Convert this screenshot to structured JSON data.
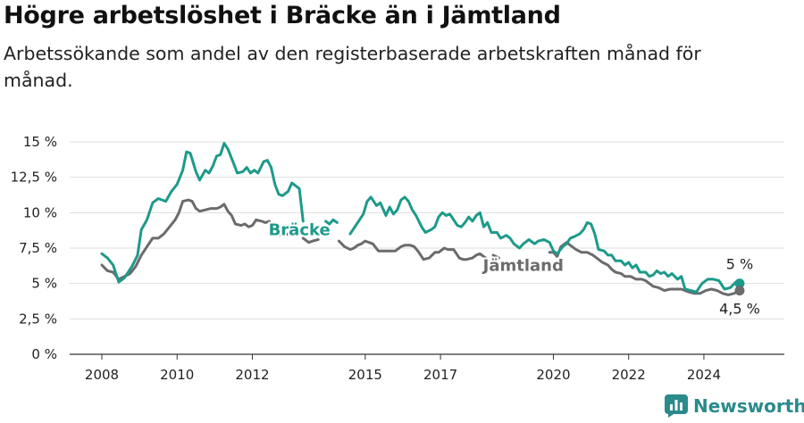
{
  "title": "Högre arbetslöshet i Bräcke än i Jämtland",
  "subtitle": "Arbetssökande som andel av den registerbaserade arbetskraften månad för månad.",
  "brand": {
    "name": "Newsworthy"
  },
  "colors": {
    "bracke": "#1d9a8a",
    "jamtland": "#6b6b6e",
    "grid": "#dedede",
    "brand": "#2a8a8c"
  },
  "chart_data": {
    "type": "line",
    "ylim": [
      0,
      15
    ],
    "xlim": [
      2007.7,
      2025.65
    ],
    "y_ticks": [
      {
        "value": 0,
        "label": "0 %"
      },
      {
        "value": 2.5,
        "label": "2,5 %"
      },
      {
        "value": 5,
        "label": "5 %"
      },
      {
        "value": 7.5,
        "label": "7,5 %"
      },
      {
        "value": 10,
        "label": "10 %"
      },
      {
        "value": 12.5,
        "label": "12,5 %"
      },
      {
        "value": 15,
        "label": "15 %"
      }
    ],
    "x_ticks": [
      {
        "value": 2008,
        "label": "2008"
      },
      {
        "value": 2010,
        "label": "2010"
      },
      {
        "value": 2012,
        "label": "2012"
      },
      {
        "value": 2015,
        "label": "2015"
      },
      {
        "value": 2017,
        "label": "2017"
      },
      {
        "value": 2020,
        "label": "2020"
      },
      {
        "value": 2022,
        "label": "2022"
      },
      {
        "value": 2024,
        "label": "2024"
      }
    ],
    "series": [
      {
        "name": "Bräcke",
        "end_label": "5 %",
        "points": [
          [
            2008.0,
            7.1
          ],
          [
            2008.15,
            6.8
          ],
          [
            2008.3,
            6.3
          ],
          [
            2008.45,
            5.1
          ],
          [
            2008.6,
            5.4
          ],
          [
            2008.8,
            6.2
          ],
          [
            2008.95,
            7.0
          ],
          [
            2009.05,
            8.8
          ],
          [
            2009.2,
            9.5
          ],
          [
            2009.35,
            10.7
          ],
          [
            2009.5,
            11.0
          ],
          [
            2009.7,
            10.8
          ],
          [
            2009.85,
            11.5
          ],
          [
            2010.0,
            12.0
          ],
          [
            2010.15,
            13.0
          ],
          [
            2010.25,
            14.3
          ],
          [
            2010.35,
            14.2
          ],
          [
            2010.5,
            12.9
          ],
          [
            2010.6,
            12.3
          ],
          [
            2010.75,
            13.0
          ],
          [
            2010.85,
            12.8
          ],
          [
            2010.95,
            13.3
          ],
          [
            2011.05,
            14.0
          ],
          [
            2011.15,
            14.1
          ],
          [
            2011.25,
            14.9
          ],
          [
            2011.35,
            14.5
          ],
          [
            2011.5,
            13.5
          ],
          [
            2011.6,
            12.8
          ],
          [
            2011.75,
            12.9
          ],
          [
            2011.85,
            13.2
          ],
          [
            2011.95,
            12.8
          ],
          [
            2012.05,
            13.0
          ],
          [
            2012.15,
            12.8
          ],
          [
            2012.3,
            13.6
          ],
          [
            2012.4,
            13.7
          ],
          [
            2012.5,
            13.2
          ],
          [
            2012.6,
            12.0
          ],
          [
            2012.7,
            11.3
          ],
          [
            2012.8,
            11.2
          ],
          [
            2012.95,
            11.5
          ],
          [
            2013.05,
            12.1
          ],
          [
            2013.15,
            11.9
          ],
          [
            2013.25,
            11.7
          ],
          [
            2013.35,
            9.4
          ],
          null,
          [
            2013.95,
            9.4
          ],
          [
            2014.05,
            9.2
          ],
          [
            2014.15,
            9.5
          ],
          [
            2014.25,
            9.3
          ],
          null,
          [
            2014.6,
            8.5
          ],
          [
            2014.75,
            9.1
          ],
          [
            2014.85,
            9.5
          ],
          [
            2014.95,
            9.9
          ],
          [
            2015.05,
            10.8
          ],
          [
            2015.15,
            11.1
          ],
          [
            2015.3,
            10.5
          ],
          [
            2015.4,
            10.7
          ],
          [
            2015.55,
            9.8
          ],
          [
            2015.65,
            10.4
          ],
          [
            2015.75,
            9.9
          ],
          [
            2015.85,
            10.2
          ],
          [
            2015.95,
            10.9
          ],
          [
            2016.05,
            11.1
          ],
          [
            2016.15,
            10.8
          ],
          [
            2016.25,
            10.2
          ],
          [
            2016.35,
            9.8
          ],
          [
            2016.5,
            9.0
          ],
          [
            2016.6,
            8.6
          ],
          [
            2016.75,
            8.8
          ],
          [
            2016.85,
            9.0
          ],
          [
            2016.95,
            9.7
          ],
          [
            2017.05,
            10.0
          ],
          [
            2017.15,
            9.8
          ],
          [
            2017.25,
            9.9
          ],
          [
            2017.35,
            9.5
          ],
          [
            2017.45,
            9.1
          ],
          [
            2017.55,
            9.0
          ],
          [
            2017.65,
            9.3
          ],
          [
            2017.75,
            9.7
          ],
          [
            2017.85,
            9.4
          ],
          [
            2017.95,
            9.8
          ],
          [
            2018.05,
            10.0
          ],
          [
            2018.15,
            9.0
          ],
          [
            2018.25,
            9.3
          ],
          [
            2018.35,
            8.6
          ],
          [
            2018.5,
            8.6
          ],
          [
            2018.6,
            8.2
          ],
          [
            2018.75,
            8.4
          ],
          [
            2018.85,
            8.2
          ],
          [
            2018.95,
            7.8
          ],
          [
            2019.1,
            7.5
          ],
          [
            2019.2,
            7.8
          ],
          [
            2019.35,
            8.1
          ],
          [
            2019.5,
            7.8
          ],
          [
            2019.6,
            8.0
          ],
          [
            2019.75,
            8.1
          ],
          [
            2019.9,
            7.9
          ],
          [
            2020.0,
            7.3
          ],
          [
            2020.1,
            7.1
          ],
          [
            2020.25,
            7.6
          ],
          [
            2020.35,
            7.8
          ],
          [
            2020.45,
            8.2
          ],
          [
            2020.55,
            8.3
          ],
          [
            2020.7,
            8.5
          ],
          [
            2020.8,
            8.8
          ],
          [
            2020.9,
            9.3
          ],
          [
            2021.0,
            9.2
          ],
          [
            2021.1,
            8.5
          ],
          [
            2021.2,
            7.4
          ],
          [
            2021.35,
            7.3
          ],
          [
            2021.45,
            7.0
          ],
          [
            2021.55,
            7.0
          ],
          [
            2021.65,
            6.6
          ],
          [
            2021.8,
            6.6
          ],
          [
            2021.9,
            6.3
          ],
          [
            2022.0,
            6.5
          ],
          [
            2022.1,
            6.1
          ],
          [
            2022.2,
            6.3
          ],
          [
            2022.3,
            5.8
          ],
          [
            2022.45,
            5.8
          ],
          [
            2022.55,
            5.5
          ],
          [
            2022.65,
            5.6
          ],
          [
            2022.75,
            5.9
          ],
          [
            2022.85,
            5.7
          ],
          [
            2022.95,
            5.8
          ],
          [
            2023.05,
            5.5
          ],
          [
            2023.15,
            5.7
          ],
          [
            2023.3,
            5.3
          ],
          [
            2023.4,
            5.5
          ],
          [
            2023.5,
            4.6
          ],
          [
            2023.65,
            4.5
          ],
          [
            2023.8,
            4.4
          ],
          [
            2023.95,
            5.0
          ],
          [
            2024.1,
            5.3
          ],
          [
            2024.25,
            5.3
          ],
          [
            2024.4,
            5.2
          ],
          [
            2024.55,
            4.6
          ],
          [
            2024.7,
            4.7
          ],
          [
            2024.85,
            5.1
          ],
          [
            2024.95,
            5.0
          ]
        ]
      },
      {
        "name": "Jämtland",
        "end_label": "4,5 %",
        "points": [
          [
            2008.0,
            6.3
          ],
          [
            2008.15,
            5.9
          ],
          [
            2008.3,
            5.8
          ],
          [
            2008.45,
            5.3
          ],
          [
            2008.6,
            5.5
          ],
          [
            2008.75,
            5.7
          ],
          [
            2008.9,
            6.2
          ],
          [
            2009.05,
            7.0
          ],
          [
            2009.2,
            7.6
          ],
          [
            2009.35,
            8.2
          ],
          [
            2009.5,
            8.2
          ],
          [
            2009.65,
            8.5
          ],
          [
            2009.8,
            9.0
          ],
          [
            2009.95,
            9.5
          ],
          [
            2010.05,
            10.0
          ],
          [
            2010.15,
            10.8
          ],
          [
            2010.3,
            10.9
          ],
          [
            2010.4,
            10.8
          ],
          [
            2010.5,
            10.3
          ],
          [
            2010.6,
            10.1
          ],
          [
            2010.75,
            10.2
          ],
          [
            2010.9,
            10.3
          ],
          [
            2011.05,
            10.3
          ],
          [
            2011.15,
            10.4
          ],
          [
            2011.25,
            10.6
          ],
          [
            2011.35,
            10.1
          ],
          [
            2011.45,
            9.8
          ],
          [
            2011.55,
            9.2
          ],
          [
            2011.7,
            9.1
          ],
          [
            2011.8,
            9.2
          ],
          [
            2011.9,
            9.0
          ],
          [
            2012.0,
            9.1
          ],
          [
            2012.1,
            9.5
          ],
          [
            2012.25,
            9.4
          ],
          [
            2012.35,
            9.3
          ],
          [
            2012.45,
            9.4
          ],
          [
            2012.55,
            8.8
          ],
          [
            2012.65,
            8.8
          ],
          [
            2012.75,
            8.4
          ],
          null,
          [
            2012.85,
            8.4
          ],
          [
            2013.05,
            8.6
          ],
          null,
          [
            2013.35,
            8.2
          ],
          [
            2013.5,
            7.9
          ],
          [
            2013.6,
            8.0
          ],
          [
            2013.75,
            8.1
          ],
          null,
          [
            2014.3,
            8.0
          ],
          [
            2014.45,
            7.6
          ],
          [
            2014.6,
            7.4
          ],
          [
            2014.7,
            7.5
          ],
          [
            2014.8,
            7.7
          ],
          [
            2014.9,
            7.8
          ],
          [
            2015.0,
            8.0
          ],
          [
            2015.1,
            7.9
          ],
          [
            2015.2,
            7.8
          ],
          [
            2015.35,
            7.3
          ],
          [
            2015.5,
            7.3
          ],
          [
            2015.65,
            7.3
          ],
          [
            2015.8,
            7.3
          ],
          [
            2015.95,
            7.6
          ],
          [
            2016.05,
            7.7
          ],
          [
            2016.2,
            7.7
          ],
          [
            2016.3,
            7.6
          ],
          [
            2016.4,
            7.3
          ],
          [
            2016.55,
            6.7
          ],
          [
            2016.7,
            6.8
          ],
          [
            2016.85,
            7.2
          ],
          [
            2016.95,
            7.2
          ],
          [
            2017.1,
            7.5
          ],
          [
            2017.2,
            7.4
          ],
          [
            2017.35,
            7.4
          ],
          [
            2017.5,
            6.8
          ],
          [
            2017.6,
            6.7
          ],
          [
            2017.7,
            6.7
          ],
          [
            2017.85,
            6.8
          ],
          [
            2017.95,
            7.0
          ],
          [
            2018.05,
            7.1
          ],
          [
            2018.2,
            6.8
          ],
          null,
          [
            2018.4,
            7.0
          ],
          [
            2018.55,
            6.8
          ],
          null,
          [
            2019.9,
            7.2
          ],
          [
            2020.0,
            7.2
          ],
          [
            2020.1,
            6.9
          ],
          [
            2020.2,
            7.6
          ],
          [
            2020.35,
            7.9
          ],
          [
            2020.5,
            7.6
          ],
          [
            2020.6,
            7.4
          ],
          [
            2020.75,
            7.2
          ],
          [
            2020.9,
            7.2
          ],
          [
            2021.05,
            7.0
          ],
          [
            2021.15,
            6.8
          ],
          [
            2021.3,
            6.5
          ],
          [
            2021.45,
            6.3
          ],
          [
            2021.55,
            6.0
          ],
          [
            2021.65,
            5.8
          ],
          [
            2021.8,
            5.7
          ],
          [
            2021.9,
            5.5
          ],
          [
            2022.05,
            5.5
          ],
          [
            2022.2,
            5.3
          ],
          [
            2022.35,
            5.3
          ],
          [
            2022.45,
            5.2
          ],
          [
            2022.55,
            5.0
          ],
          [
            2022.65,
            4.8
          ],
          [
            2022.8,
            4.7
          ],
          [
            2022.95,
            4.5
          ],
          [
            2023.1,
            4.6
          ],
          [
            2023.25,
            4.6
          ],
          [
            2023.4,
            4.6
          ],
          [
            2023.5,
            4.5
          ],
          [
            2023.6,
            4.4
          ],
          [
            2023.75,
            4.3
          ],
          [
            2023.9,
            4.3
          ],
          [
            2024.05,
            4.5
          ],
          [
            2024.2,
            4.6
          ],
          [
            2024.35,
            4.5
          ],
          [
            2024.5,
            4.3
          ],
          [
            2024.65,
            4.2
          ],
          [
            2024.8,
            4.3
          ],
          [
            2024.95,
            4.5
          ]
        ]
      }
    ]
  }
}
